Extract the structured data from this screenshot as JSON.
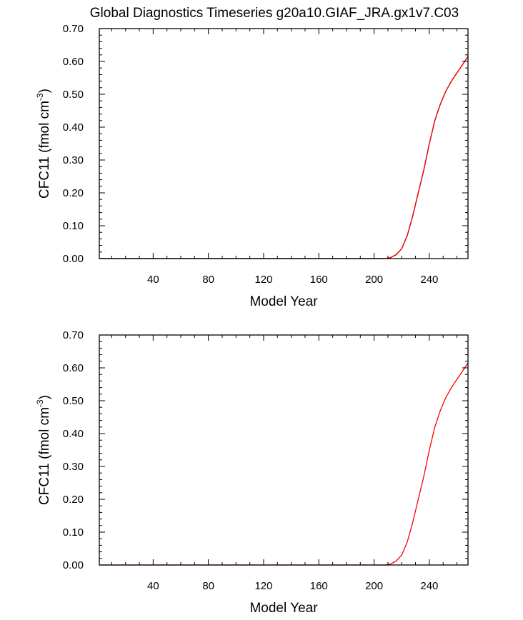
{
  "title": "Global Diagnostics Timeseries g20a10.GIAF_JRA.gx1v7.C03",
  "chart_data": [
    {
      "type": "line",
      "xlabel": "Model Year",
      "ylabel_main": "CFC11 (fmol cm",
      "ylabel_sup": "-3",
      "ylabel_close": ")",
      "xlim": [
        1,
        268
      ],
      "ylim": [
        0,
        0.7
      ],
      "xticks": [
        "40",
        "80",
        "120",
        "160",
        "200",
        "240"
      ],
      "yticks": [
        "0.00",
        "0.10",
        "0.20",
        "0.30",
        "0.40",
        "0.50",
        "0.60",
        "0.70"
      ],
      "grid": false,
      "series": [
        {
          "color": "#000000",
          "x": [
            1,
            208,
            212,
            216,
            220,
            224,
            228,
            232,
            236,
            240,
            244,
            248,
            252,
            256,
            260,
            264,
            268
          ],
          "y": [
            0.0,
            0.0,
            0.003,
            0.012,
            0.03,
            0.07,
            0.13,
            0.2,
            0.27,
            0.35,
            0.42,
            0.47,
            0.51,
            0.54,
            0.565,
            0.59,
            0.615
          ]
        },
        {
          "color": "#ff0000",
          "x": [
            1,
            208,
            212,
            216,
            220,
            224,
            228,
            232,
            236,
            240,
            244,
            248,
            252,
            256,
            260,
            264,
            268
          ],
          "y": [
            0.0,
            0.0,
            0.003,
            0.012,
            0.03,
            0.07,
            0.13,
            0.2,
            0.27,
            0.35,
            0.42,
            0.47,
            0.51,
            0.54,
            0.565,
            0.59,
            0.615
          ]
        }
      ]
    },
    {
      "type": "line",
      "xlabel": "Model Year",
      "ylabel_main": "CFC11 (fmol cm",
      "ylabel_sup": "-3",
      "ylabel_close": ")",
      "xlim": [
        1,
        268
      ],
      "ylim": [
        0,
        0.7
      ],
      "xticks": [
        "40",
        "80",
        "120",
        "160",
        "200",
        "240"
      ],
      "yticks": [
        "0.00",
        "0.10",
        "0.20",
        "0.30",
        "0.40",
        "0.50",
        "0.60",
        "0.70"
      ],
      "grid": false,
      "series": [
        {
          "color": "#ff0000",
          "x": [
            1,
            208,
            212,
            216,
            220,
            224,
            228,
            232,
            236,
            240,
            244,
            248,
            252,
            256,
            260,
            264,
            268
          ],
          "y": [
            0.0,
            0.0,
            0.003,
            0.012,
            0.03,
            0.07,
            0.13,
            0.2,
            0.27,
            0.35,
            0.42,
            0.47,
            0.51,
            0.54,
            0.565,
            0.59,
            0.615
          ]
        }
      ]
    }
  ]
}
